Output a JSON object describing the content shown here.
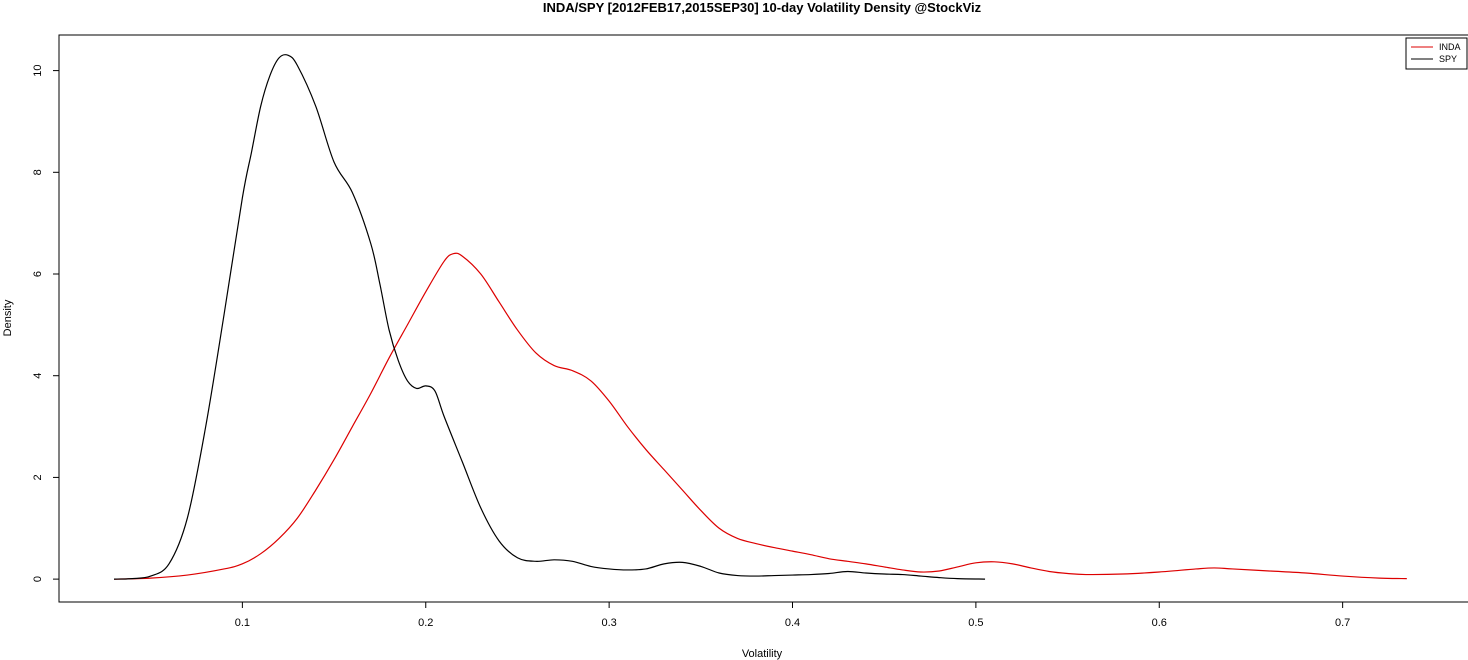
{
  "chart_data": {
    "type": "line",
    "title": "INDA/SPY [2012FEB17,2015SEP30] 10-day Volatility Density @StockViz",
    "xlabel": "Volatility",
    "ylabel": "Density",
    "xlim": [
      0.0,
      0.77
    ],
    "ylim": [
      -0.45,
      10.7
    ],
    "x_ticks": [
      0.1,
      0.2,
      0.3,
      0.4,
      0.5,
      0.6,
      0.7
    ],
    "x_tick_labels": [
      "0.1",
      "0.2",
      "0.3",
      "0.4",
      "0.5",
      "0.6",
      "0.7"
    ],
    "y_ticks": [
      0,
      2,
      4,
      6,
      8,
      10
    ],
    "y_tick_labels": [
      "0",
      "2",
      "4",
      "6",
      "8",
      "10"
    ],
    "grid": false,
    "legend_position": "top-right",
    "series": [
      {
        "name": "INDA",
        "color": "#dd0000",
        "points": [
          [
            0.03,
            0.0
          ],
          [
            0.05,
            0.02
          ],
          [
            0.07,
            0.08
          ],
          [
            0.09,
            0.2
          ],
          [
            0.1,
            0.3
          ],
          [
            0.11,
            0.5
          ],
          [
            0.12,
            0.8
          ],
          [
            0.13,
            1.2
          ],
          [
            0.14,
            1.75
          ],
          [
            0.15,
            2.35
          ],
          [
            0.16,
            3.0
          ],
          [
            0.17,
            3.65
          ],
          [
            0.18,
            4.35
          ],
          [
            0.19,
            5.0
          ],
          [
            0.2,
            5.65
          ],
          [
            0.21,
            6.25
          ],
          [
            0.215,
            6.4
          ],
          [
            0.22,
            6.35
          ],
          [
            0.23,
            6.0
          ],
          [
            0.24,
            5.45
          ],
          [
            0.25,
            4.9
          ],
          [
            0.26,
            4.45
          ],
          [
            0.27,
            4.2
          ],
          [
            0.28,
            4.1
          ],
          [
            0.29,
            3.9
          ],
          [
            0.3,
            3.5
          ],
          [
            0.31,
            3.0
          ],
          [
            0.32,
            2.55
          ],
          [
            0.33,
            2.15
          ],
          [
            0.34,
            1.75
          ],
          [
            0.35,
            1.35
          ],
          [
            0.36,
            1.0
          ],
          [
            0.37,
            0.8
          ],
          [
            0.38,
            0.7
          ],
          [
            0.39,
            0.62
          ],
          [
            0.4,
            0.55
          ],
          [
            0.41,
            0.48
          ],
          [
            0.42,
            0.4
          ],
          [
            0.43,
            0.35
          ],
          [
            0.44,
            0.3
          ],
          [
            0.45,
            0.24
          ],
          [
            0.46,
            0.18
          ],
          [
            0.47,
            0.14
          ],
          [
            0.48,
            0.16
          ],
          [
            0.49,
            0.24
          ],
          [
            0.5,
            0.32
          ],
          [
            0.51,
            0.34
          ],
          [
            0.52,
            0.3
          ],
          [
            0.53,
            0.22
          ],
          [
            0.54,
            0.15
          ],
          [
            0.55,
            0.11
          ],
          [
            0.56,
            0.09
          ],
          [
            0.58,
            0.1
          ],
          [
            0.6,
            0.14
          ],
          [
            0.62,
            0.2
          ],
          [
            0.63,
            0.22
          ],
          [
            0.64,
            0.2
          ],
          [
            0.66,
            0.16
          ],
          [
            0.68,
            0.12
          ],
          [
            0.7,
            0.06
          ],
          [
            0.72,
            0.02
          ],
          [
            0.735,
            0.01
          ]
        ]
      },
      {
        "name": "SPY",
        "color": "#000000",
        "points": [
          [
            0.03,
            0.0
          ],
          [
            0.04,
            0.01
          ],
          [
            0.05,
            0.06
          ],
          [
            0.06,
            0.3
          ],
          [
            0.07,
            1.2
          ],
          [
            0.08,
            3.0
          ],
          [
            0.09,
            5.2
          ],
          [
            0.1,
            7.5
          ],
          [
            0.105,
            8.4
          ],
          [
            0.11,
            9.3
          ],
          [
            0.115,
            9.9
          ],
          [
            0.12,
            10.25
          ],
          [
            0.125,
            10.3
          ],
          [
            0.13,
            10.1
          ],
          [
            0.14,
            9.3
          ],
          [
            0.15,
            8.2
          ],
          [
            0.16,
            7.6
          ],
          [
            0.17,
            6.6
          ],
          [
            0.175,
            5.8
          ],
          [
            0.18,
            4.9
          ],
          [
            0.185,
            4.3
          ],
          [
            0.19,
            3.9
          ],
          [
            0.195,
            3.75
          ],
          [
            0.2,
            3.8
          ],
          [
            0.205,
            3.7
          ],
          [
            0.21,
            3.2
          ],
          [
            0.22,
            2.3
          ],
          [
            0.23,
            1.4
          ],
          [
            0.24,
            0.75
          ],
          [
            0.25,
            0.42
          ],
          [
            0.26,
            0.35
          ],
          [
            0.27,
            0.38
          ],
          [
            0.28,
            0.35
          ],
          [
            0.29,
            0.25
          ],
          [
            0.3,
            0.2
          ],
          [
            0.31,
            0.18
          ],
          [
            0.32,
            0.2
          ],
          [
            0.33,
            0.3
          ],
          [
            0.34,
            0.33
          ],
          [
            0.35,
            0.25
          ],
          [
            0.36,
            0.12
          ],
          [
            0.37,
            0.07
          ],
          [
            0.38,
            0.06
          ],
          [
            0.39,
            0.07
          ],
          [
            0.4,
            0.08
          ],
          [
            0.41,
            0.09
          ],
          [
            0.42,
            0.11
          ],
          [
            0.43,
            0.15
          ],
          [
            0.44,
            0.12
          ],
          [
            0.45,
            0.1
          ],
          [
            0.46,
            0.09
          ],
          [
            0.47,
            0.06
          ],
          [
            0.48,
            0.03
          ],
          [
            0.49,
            0.01
          ],
          [
            0.505,
            0.0
          ]
        ]
      }
    ]
  }
}
